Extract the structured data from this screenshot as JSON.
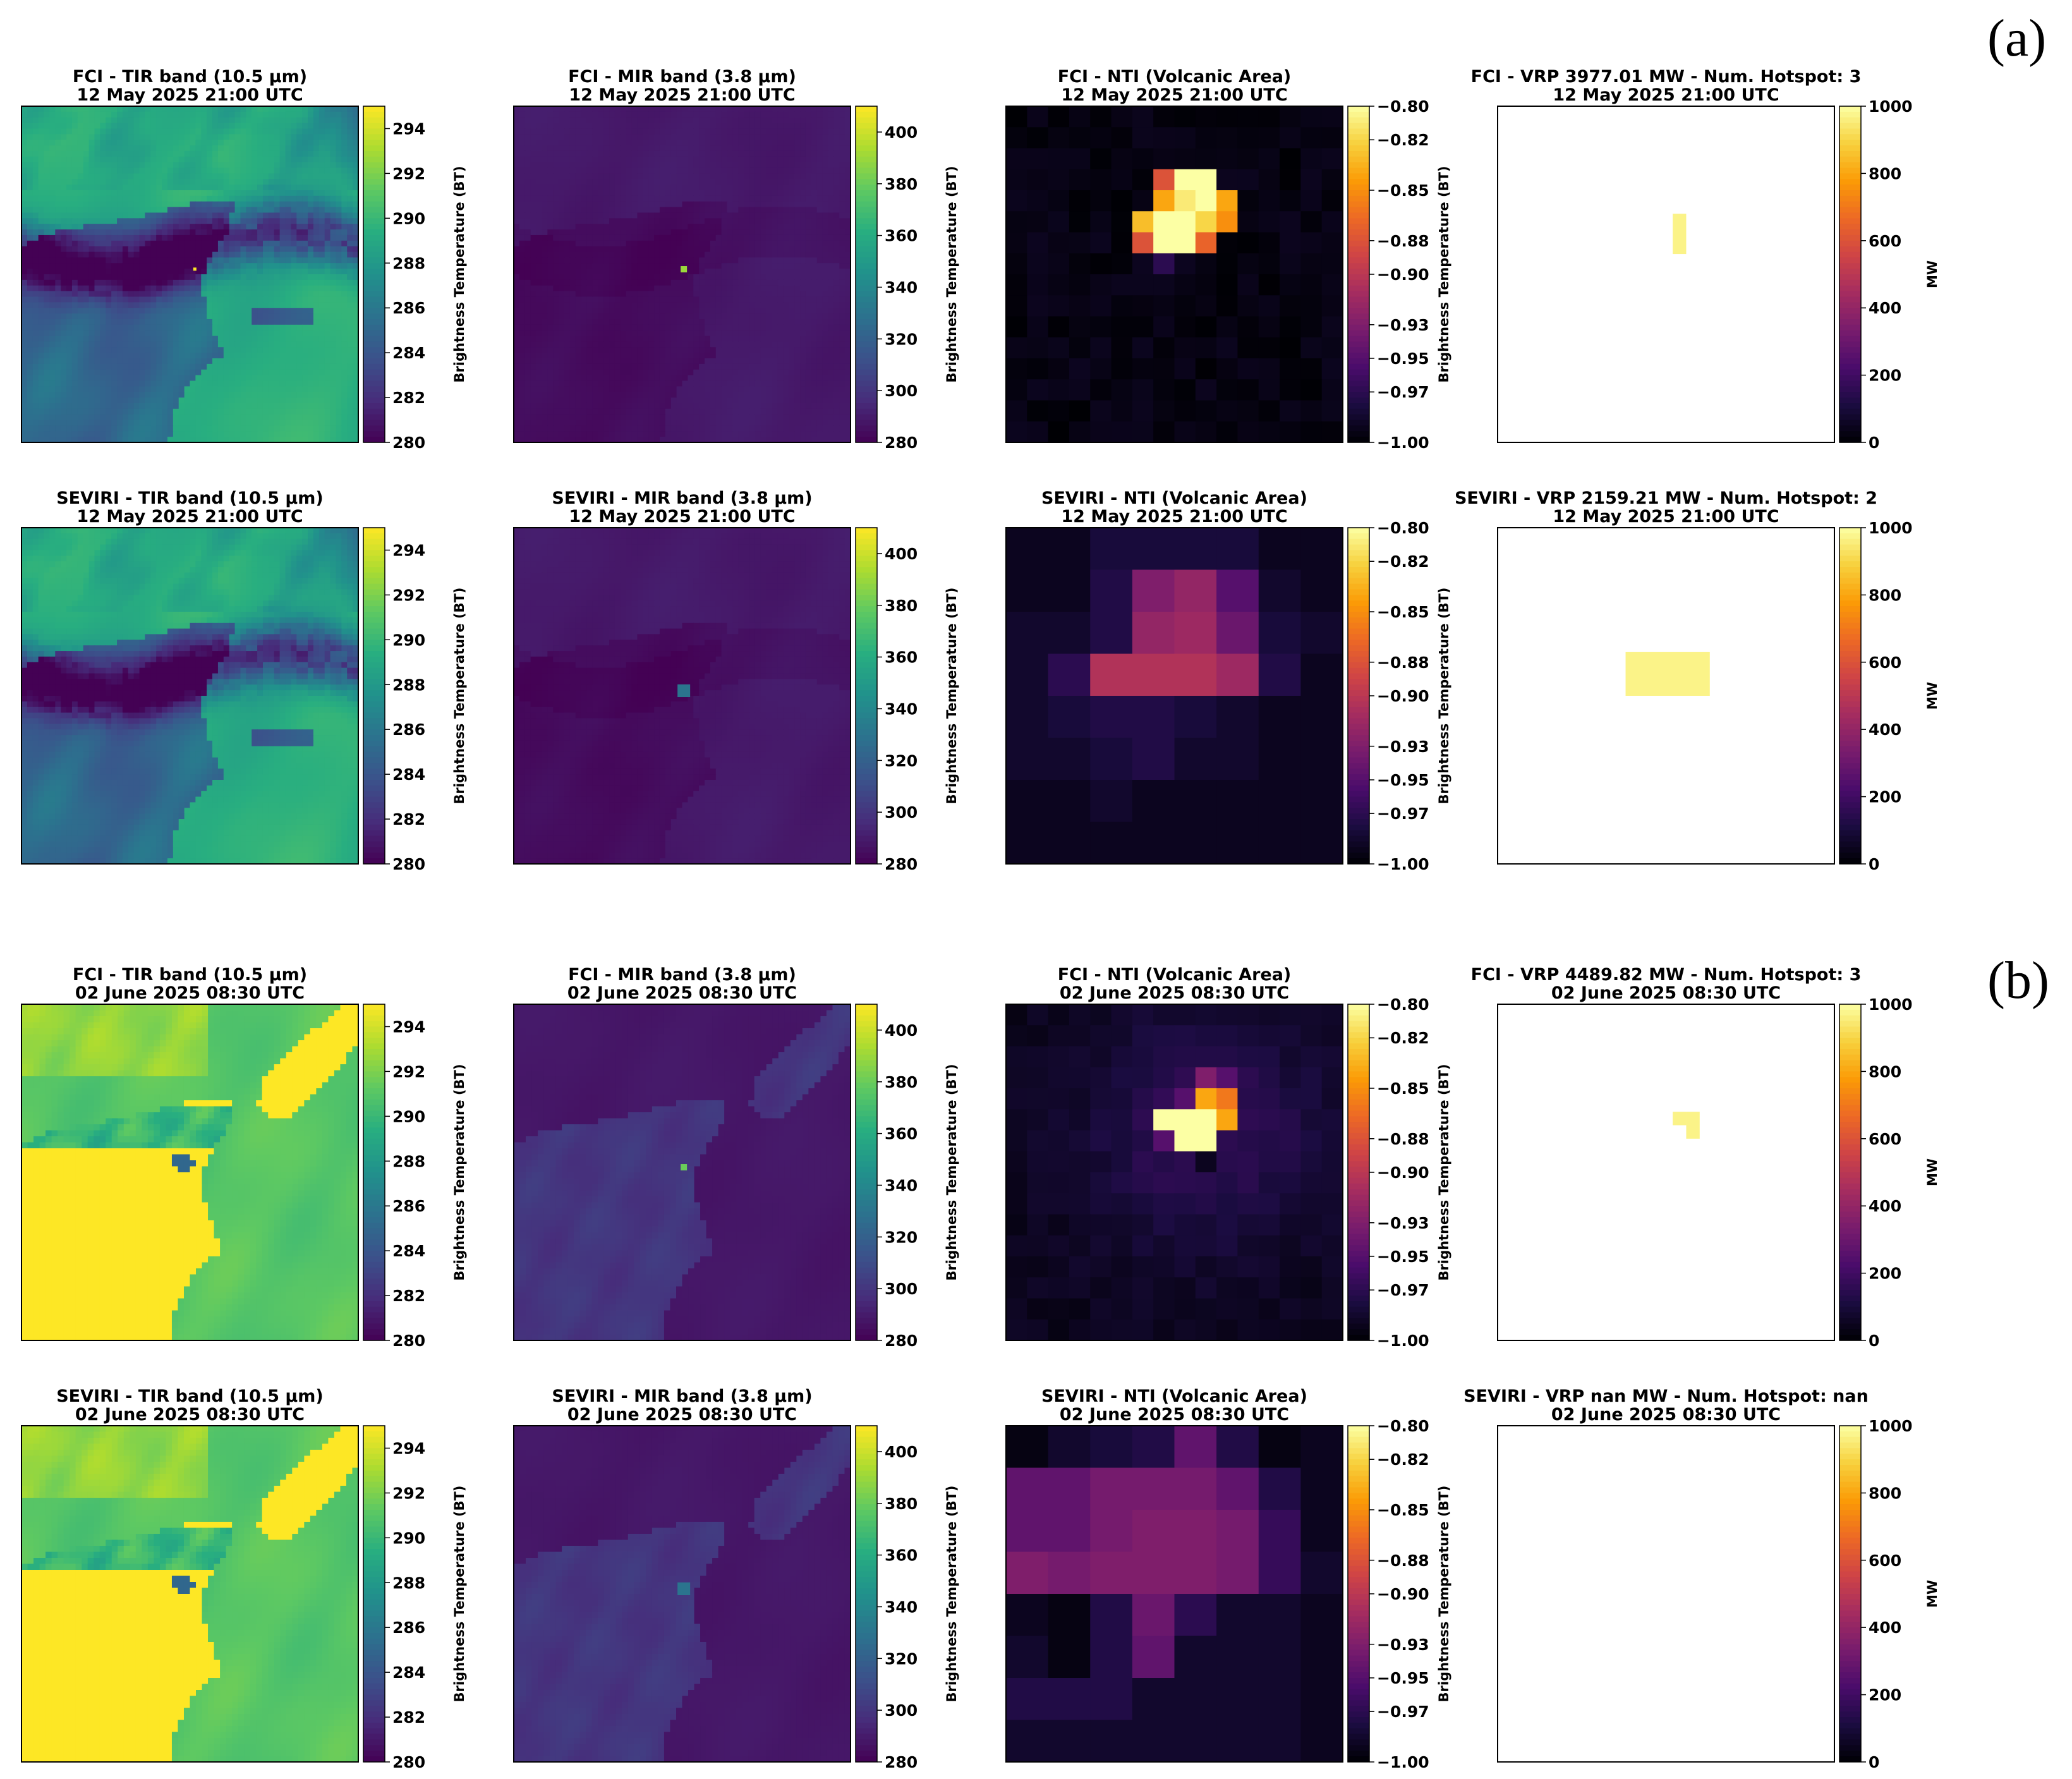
{
  "group_labels": [
    "(a)",
    "(b)"
  ],
  "colormaps": {
    "viridis": [
      "#440154",
      "#472d7b",
      "#3b528b",
      "#2c728e",
      "#21918c",
      "#28ae80",
      "#5ec962",
      "#addc30",
      "#fde725"
    ],
    "inferno": [
      "#000004",
      "#1b0c41",
      "#4a0c6b",
      "#781c6d",
      "#a52c60",
      "#cf4446",
      "#ed6925",
      "#fb9b06",
      "#f7d13d",
      "#fcffa4"
    ]
  },
  "chart_data": [
    {
      "type": "heatmap",
      "row": 0,
      "col": 0,
      "title": "FCI - TIR band (10.5 µm)",
      "subtitle": "12 May 2025 21:00 UTC",
      "colormap": "viridis",
      "clim": [
        280,
        295
      ],
      "cbar_ticks": [
        280,
        282,
        284,
        286,
        288,
        290,
        292,
        294
      ],
      "cbar_label": "Brightness Temperature (BT)",
      "scene": "tir_cloudy",
      "values_summary": {
        "background": 289,
        "cloud_band": 281,
        "land": 285
      }
    },
    {
      "type": "heatmap",
      "row": 0,
      "col": 1,
      "title": "FCI - MIR band (3.8 µm)",
      "subtitle": "12 May 2025 21:00 UTC",
      "colormap": "viridis",
      "clim": [
        280,
        410
      ],
      "cbar_ticks": [
        280,
        300,
        320,
        340,
        360,
        380,
        400
      ],
      "cbar_label": "Brightness Temperature (BT)",
      "scene": "mir_night",
      "values_summary": {
        "background": 288,
        "hotspot": 390
      }
    },
    {
      "type": "heatmap",
      "row": 0,
      "col": 2,
      "title": "FCI - NTI (Volcanic Area)",
      "subtitle": "12 May 2025 21:00 UTC",
      "colormap": "inferno",
      "clim": [
        -1.0,
        -0.8
      ],
      "cbar_ticks": [
        "-1.00",
        "-0.97",
        "-0.95",
        "-0.93",
        "-0.90",
        "-0.88",
        "-0.85",
        "-0.82",
        "-0.80"
      ],
      "cbar_label": "Brightness Temperature (BT)",
      "scene": "nti_fine_a",
      "values_summary": {
        "background": -0.99,
        "hotspot": -0.8
      }
    },
    {
      "type": "heatmap",
      "row": 0,
      "col": 3,
      "title": "FCI - VRP 3977.01 MW - Num. Hotspot: 3",
      "subtitle": "12 May 2025 21:00 UTC",
      "colormap": "inferno",
      "clim": [
        0,
        1000
      ],
      "cbar_ticks": [
        0,
        200,
        400,
        600,
        800,
        1000
      ],
      "cbar_label": "MW",
      "scene": "vrp",
      "vrp_mw": 3977.01,
      "num_hotspot": 3
    },
    {
      "type": "heatmap",
      "row": 1,
      "col": 0,
      "title": "SEVIRI - TIR band (10.5 µm)",
      "subtitle": "12 May 2025 21:00 UTC",
      "colormap": "viridis",
      "clim": [
        280,
        295
      ],
      "cbar_ticks": [
        280,
        282,
        284,
        286,
        288,
        290,
        292,
        294
      ],
      "cbar_label": "Brightness Temperature (BT)",
      "scene": "tir_cloudy",
      "values_summary": {
        "background": 289,
        "cloud_band": 281,
        "land": 285
      }
    },
    {
      "type": "heatmap",
      "row": 1,
      "col": 1,
      "title": "SEVIRI - MIR band (3.8 µm)",
      "subtitle": "12 May 2025 21:00 UTC",
      "colormap": "viridis",
      "clim": [
        280,
        410
      ],
      "cbar_ticks": [
        280,
        300,
        320,
        340,
        360,
        380,
        400
      ],
      "cbar_label": "Brightness Temperature (BT)",
      "scene": "mir_night",
      "values_summary": {
        "background": 288,
        "hotspot": 330
      }
    },
    {
      "type": "heatmap",
      "row": 1,
      "col": 2,
      "title": "SEVIRI - NTI (Volcanic Area)",
      "subtitle": "12 May 2025 21:00 UTC",
      "colormap": "inferno",
      "clim": [
        -1.0,
        -0.8
      ],
      "cbar_ticks": [
        "-1.00",
        "-0.97",
        "-0.95",
        "-0.93",
        "-0.90",
        "-0.88",
        "-0.85",
        "-0.82",
        "-0.80"
      ],
      "cbar_label": "Brightness Temperature (BT)",
      "scene": "nti_coarse_a",
      "values_summary": {
        "background": -0.99,
        "hotspot": -0.91
      }
    },
    {
      "type": "heatmap",
      "row": 1,
      "col": 3,
      "title": "SEVIRI - VRP 2159.21 MW - Num. Hotspot: 2",
      "subtitle": "12 May 2025 21:00 UTC",
      "colormap": "inferno",
      "clim": [
        0,
        1000
      ],
      "cbar_ticks": [
        0,
        200,
        400,
        600,
        800,
        1000
      ],
      "cbar_label": "MW",
      "scene": "vrp",
      "vrp_mw": 2159.21,
      "num_hotspot": 2
    },
    {
      "type": "heatmap",
      "row": 2,
      "col": 0,
      "title": "FCI - TIR band (10.5 µm)",
      "subtitle": "02 June 2025 08:30 UTC",
      "colormap": "viridis",
      "clim": [
        280,
        295
      ],
      "cbar_ticks": [
        280,
        282,
        284,
        286,
        288,
        290,
        292,
        294
      ],
      "cbar_label": "Brightness Temperature (BT)",
      "scene": "tir_day",
      "values_summary": {
        "sea": 291,
        "land": 295
      }
    },
    {
      "type": "heatmap",
      "row": 2,
      "col": 1,
      "title": "FCI - MIR band (3.8 µm)",
      "subtitle": "02 June 2025 08:30 UTC",
      "colormap": "viridis",
      "clim": [
        280,
        410
      ],
      "cbar_ticks": [
        280,
        300,
        320,
        340,
        360,
        380,
        400
      ],
      "cbar_label": "Brightness Temperature (BT)",
      "scene": "mir_day",
      "values_summary": {
        "sea": 288,
        "land": 302,
        "hotspot": 380
      }
    },
    {
      "type": "heatmap",
      "row": 2,
      "col": 2,
      "title": "FCI - NTI (Volcanic Area)",
      "subtitle": "02 June 2025 08:30 UTC",
      "colormap": "inferno",
      "clim": [
        -1.0,
        -0.8
      ],
      "cbar_ticks": [
        "-1.00",
        "-0.97",
        "-0.95",
        "-0.93",
        "-0.90",
        "-0.88",
        "-0.85",
        "-0.82",
        "-0.80"
      ],
      "cbar_label": "Brightness Temperature (BT)",
      "scene": "nti_fine_b",
      "values_summary": {
        "background": -0.98,
        "hotspot": -0.8
      }
    },
    {
      "type": "heatmap",
      "row": 2,
      "col": 3,
      "title": "FCI - VRP 4489.82 MW - Num. Hotspot: 3",
      "subtitle": "02 June 2025 08:30 UTC",
      "colormap": "inferno",
      "clim": [
        0,
        1000
      ],
      "cbar_ticks": [
        0,
        200,
        400,
        600,
        800,
        1000
      ],
      "cbar_label": "MW",
      "scene": "vrp",
      "vrp_mw": 4489.82,
      "num_hotspot": 3
    },
    {
      "type": "heatmap",
      "row": 3,
      "col": 0,
      "title": "SEVIRI - TIR band (10.5 µm)",
      "subtitle": "02 June 2025 08:30 UTC",
      "colormap": "viridis",
      "clim": [
        280,
        295
      ],
      "cbar_ticks": [
        280,
        282,
        284,
        286,
        288,
        290,
        292,
        294
      ],
      "cbar_label": "Brightness Temperature (BT)",
      "scene": "tir_day",
      "values_summary": {
        "sea": 291,
        "land": 295
      }
    },
    {
      "type": "heatmap",
      "row": 3,
      "col": 1,
      "title": "SEVIRI - MIR band (3.8 µm)",
      "subtitle": "02 June 2025 08:30 UTC",
      "colormap": "viridis",
      "clim": [
        280,
        410
      ],
      "cbar_ticks": [
        280,
        300,
        320,
        340,
        360,
        380,
        400
      ],
      "cbar_label": "Brightness Temperature (BT)",
      "scene": "mir_day",
      "values_summary": {
        "sea": 288,
        "land": 302,
        "hotspot": 330
      }
    },
    {
      "type": "heatmap",
      "row": 3,
      "col": 2,
      "title": "SEVIRI - NTI (Volcanic Area)",
      "subtitle": "02 June 2025 08:30 UTC",
      "colormap": "inferno",
      "clim": [
        -1.0,
        -0.8
      ],
      "cbar_ticks": [
        "-1.00",
        "-0.97",
        "-0.95",
        "-0.93",
        "-0.90",
        "-0.88",
        "-0.85",
        "-0.82",
        "-0.80"
      ],
      "cbar_label": "Brightness Temperature (BT)",
      "scene": "nti_coarse_b",
      "values_summary": {
        "background": -0.98,
        "hotspot": -0.91
      }
    },
    {
      "type": "heatmap",
      "row": 3,
      "col": 3,
      "title": "SEVIRI - VRP nan MW - Num. Hotspot: nan",
      "subtitle": "02 June 2025 08:30 UTC",
      "colormap": "inferno",
      "clim": [
        0,
        1000
      ],
      "cbar_ticks": [
        0,
        200,
        400,
        600,
        800,
        1000
      ],
      "cbar_label": "MW",
      "scene": "vrp",
      "vrp_mw": "nan",
      "num_hotspot": "nan"
    }
  ]
}
